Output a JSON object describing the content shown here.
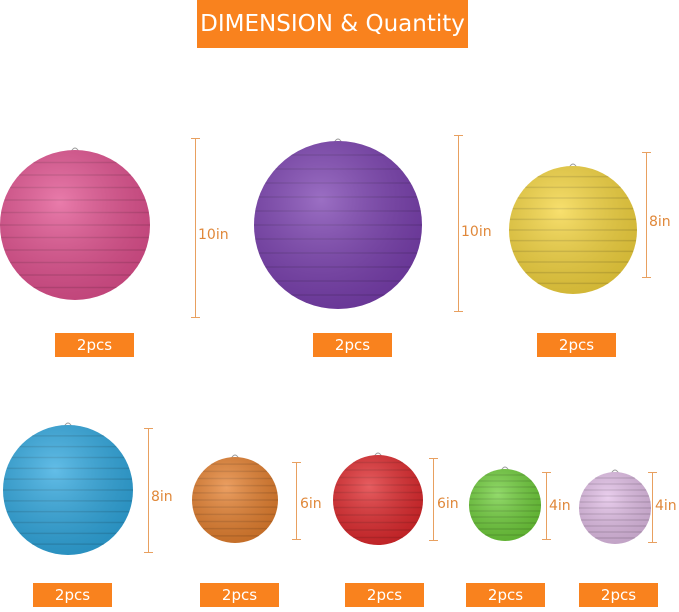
{
  "title": "DIMENSION & Quantity",
  "lanterns": [
    {
      "color": "#e2508f",
      "size": "10in",
      "qty": "2pcs"
    },
    {
      "color": "#7a3fb0",
      "size": "10in",
      "qty": "2pcs"
    },
    {
      "color": "#f6d63e",
      "size": "8in",
      "qty": "2pcs"
    },
    {
      "color": "#2fa8e0",
      "size": "8in",
      "qty": "2pcs"
    },
    {
      "color": "#e6802e",
      "size": "6in",
      "qty": "2pcs"
    },
    {
      "color": "#e0282c",
      "size": "6in",
      "qty": "2pcs"
    },
    {
      "color": "#6fcf3a",
      "size": "4in",
      "qty": "2pcs"
    },
    {
      "color": "#e3bfe8",
      "size": "4in",
      "qty": "2pcs"
    }
  ]
}
